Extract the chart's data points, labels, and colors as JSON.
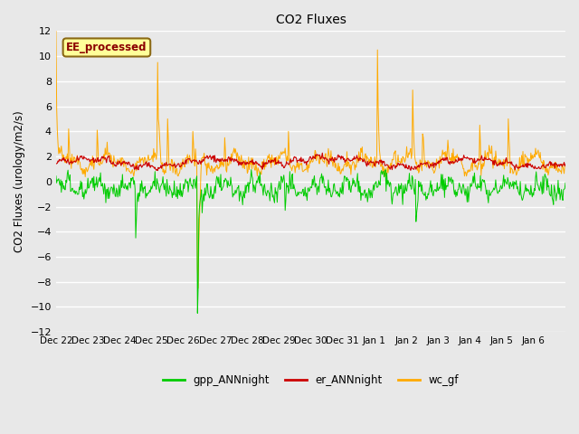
{
  "title": "CO2 Fluxes",
  "ylabel": "CO2 Fluxes (urology/m2/s)",
  "ylim": [
    -12,
    12
  ],
  "yticks": [
    -12,
    -10,
    -8,
    -6,
    -4,
    -2,
    0,
    2,
    4,
    6,
    8,
    10,
    12
  ],
  "background_color": "#e8e8e8",
  "plot_bg_color": "#e8e8e8",
  "grid_color": "white",
  "annotation_text": "EE_processed",
  "annotation_bg": "#ffff99",
  "annotation_border": "#8b6914",
  "colors": {
    "gpp_ANNnight": "#00cc00",
    "er_ANNnight": "#cc0000",
    "wc_gf": "#ffaa00"
  },
  "n_days": 16,
  "tick_labels": [
    "Dec 22",
    "Dec 23",
    "Dec 24",
    "Dec 25",
    "Dec 26",
    "Dec 27",
    "Dec 28",
    "Dec 29",
    "Dec 30",
    "Dec 31",
    "Jan 1",
    "Jan 2",
    "Jan 3",
    "Jan 4",
    "Jan 5",
    "Jan 6"
  ]
}
